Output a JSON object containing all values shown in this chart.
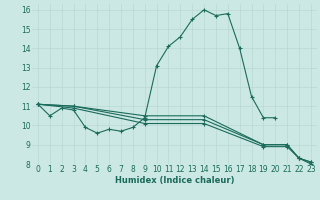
{
  "title": "",
  "xlabel": "Humidex (Indice chaleur)",
  "ylabel": "",
  "bg_color": "#cce8e4",
  "line_color": "#1a6b5a",
  "grid_color": "#b8d8d4",
  "xlim": [
    -0.5,
    23.5
  ],
  "ylim": [
    8,
    16.3
  ],
  "xticks": [
    0,
    1,
    2,
    3,
    4,
    5,
    6,
    7,
    8,
    9,
    10,
    11,
    12,
    13,
    14,
    15,
    16,
    17,
    18,
    19,
    20,
    21,
    22,
    23
  ],
  "yticks": [
    8,
    9,
    10,
    11,
    12,
    13,
    14,
    15,
    16
  ],
  "series": [
    {
      "x": [
        0,
        1,
        2,
        3,
        4,
        5,
        6,
        7,
        8,
        9,
        10,
        11,
        12,
        13,
        14,
        15,
        16,
        17,
        18,
        19,
        20
      ],
      "y": [
        11.1,
        10.5,
        10.9,
        10.8,
        9.9,
        9.6,
        9.8,
        9.7,
        9.9,
        10.4,
        13.1,
        14.1,
        14.6,
        15.5,
        16.0,
        15.7,
        15.8,
        14.0,
        11.5,
        10.4,
        10.4
      ]
    },
    {
      "x": [
        0,
        3,
        9,
        14,
        19,
        21,
        22,
        23
      ],
      "y": [
        11.1,
        11.0,
        10.5,
        10.5,
        9.0,
        9.0,
        8.3,
        8.1
      ]
    },
    {
      "x": [
        0,
        3,
        9,
        14,
        19,
        21,
        22,
        23
      ],
      "y": [
        11.1,
        11.0,
        10.3,
        10.3,
        9.0,
        9.0,
        8.3,
        8.1
      ]
    },
    {
      "x": [
        0,
        3,
        9,
        14,
        19,
        21,
        22,
        23
      ],
      "y": [
        11.1,
        10.9,
        10.1,
        10.1,
        8.9,
        8.9,
        8.3,
        8.0
      ]
    }
  ]
}
